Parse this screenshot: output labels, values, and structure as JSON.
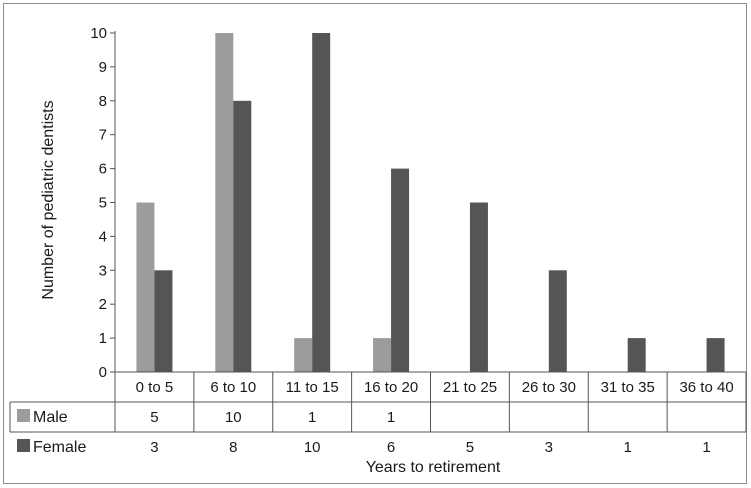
{
  "chart_data": {
    "type": "bar",
    "categories": [
      "0 to 5",
      "6 to 10",
      "11 to 15",
      "16 to 20",
      "21 to 25",
      "26 to 30",
      "31 to 35",
      "36 to 40"
    ],
    "series": [
      {
        "name": "Male",
        "color": "#9c9c9c",
        "values": [
          5,
          10,
          1,
          1,
          null,
          null,
          null,
          null
        ]
      },
      {
        "name": "Female",
        "color": "#555555",
        "values": [
          3,
          8,
          10,
          6,
          5,
          3,
          1,
          1
        ]
      }
    ],
    "ylabel": "Number of pediatric dentists",
    "xlabel": "Years to retirement",
    "ylim": [
      0,
      10
    ],
    "yticks": [
      0,
      1,
      2,
      3,
      4,
      5,
      6,
      7,
      8,
      9,
      10
    ],
    "legend_placement": "data-table-below"
  }
}
